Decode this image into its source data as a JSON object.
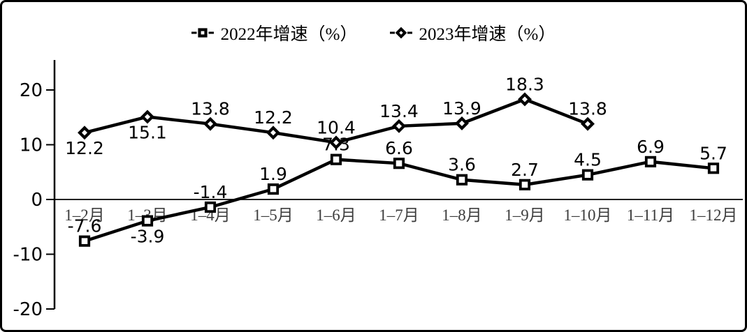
{
  "chart_data": {
    "type": "line",
    "title": "",
    "xlabel": "",
    "ylabel": "",
    "categories": [
      "1–2月",
      "1–3月",
      "1–4月",
      "1–5月",
      "1–6月",
      "1–7月",
      "1–8月",
      "1–9月",
      "1–10月",
      "1–11月",
      "1–12月"
    ],
    "series": [
      {
        "name": "2022年增速（%）",
        "marker": "square",
        "values": [
          -7.6,
          -3.9,
          -1.4,
          1.9,
          7.3,
          6.6,
          3.6,
          2.7,
          4.5,
          6.9,
          5.7
        ],
        "label_side": [
          "above",
          "below",
          "above",
          "above",
          "above",
          "above",
          "above",
          "above",
          "above",
          "above",
          "above"
        ]
      },
      {
        "name": "2023年增速（%）",
        "marker": "diamond",
        "values": [
          12.2,
          15.1,
          13.8,
          12.2,
          10.4,
          13.4,
          13.9,
          18.3,
          13.8
        ],
        "label_side": [
          "below",
          "below",
          "above",
          "above",
          "above",
          "above",
          "above",
          "above",
          "above"
        ]
      }
    ],
    "yticks": [
      20,
      10,
      0,
      -10,
      -20
    ],
    "ylim": [
      -22.5,
      25.5
    ],
    "grid": false,
    "legend_position": "top-center",
    "colors": {
      "line": "#000000",
      "marker_fill": "#ffffff",
      "data_label": "#000000",
      "ytick_label": "#000000",
      "xtick_label": "#3d3d3d",
      "axis": "#000000",
      "background": "#ffffff",
      "frame_border": "#000000"
    }
  }
}
